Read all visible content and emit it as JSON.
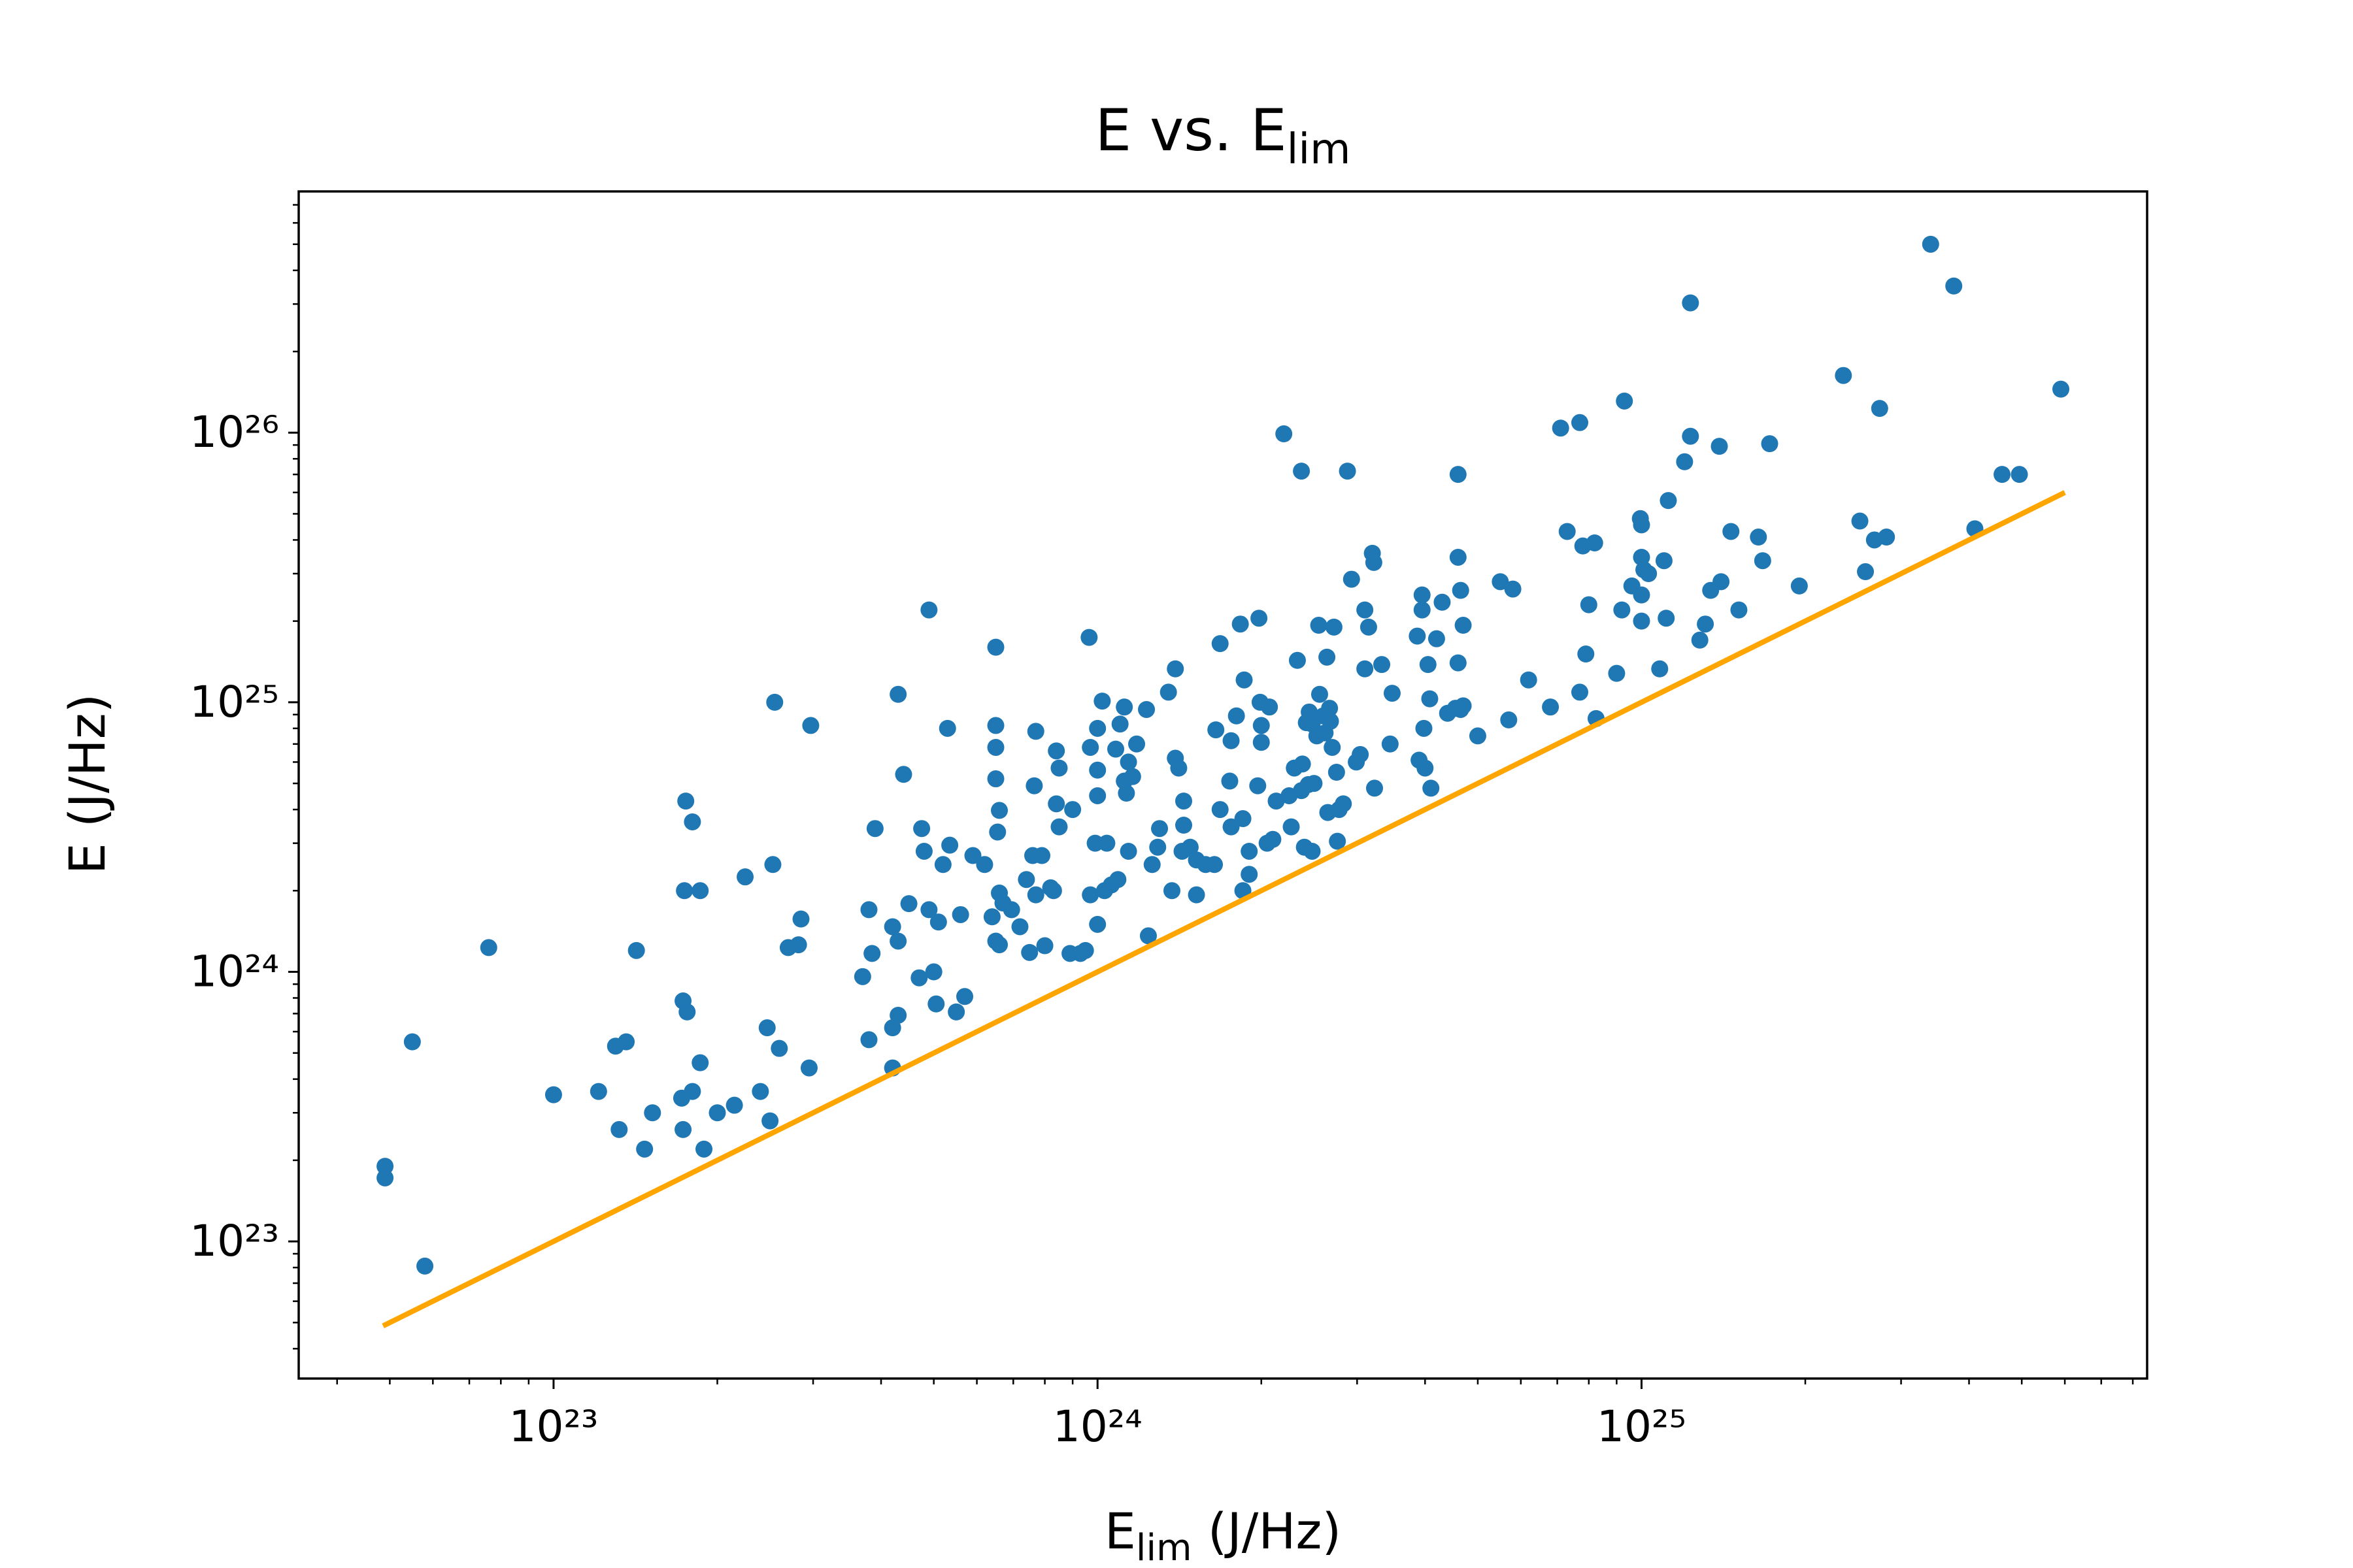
{
  "chart_data": {
    "type": "scatter",
    "title": {
      "text": "E vs. E",
      "subscript": "lim"
    },
    "x_label": {
      "text": "E",
      "subscript": "lim",
      "rest": " (J/Hz)"
    },
    "y_label": "E (J/Hz)",
    "xscale": "log",
    "yscale": "log",
    "xlim": [
      3.4e+22,
      8.5e+25
    ],
    "ylim": [
      3.1e+22,
      7.85e+26
    ],
    "xticks": [
      {
        "value": 1e+23,
        "label": "10²³"
      },
      {
        "value": 1e+24,
        "label": "10²⁴"
      },
      {
        "value": 1e+25,
        "label": "10²⁵"
      }
    ],
    "yticks": [
      {
        "value": 1e+23,
        "label": "10²³"
      },
      {
        "value": 1e+24,
        "label": "10²⁴"
      },
      {
        "value": 1e+25,
        "label": "10²⁵"
      },
      {
        "value": 1e+26,
        "label": "10²⁶"
      }
    ],
    "xminorticks": [
      4e+22,
      5e+22,
      6e+22,
      7e+22,
      8e+22,
      9e+22,
      2e+23,
      3e+23,
      4e+23,
      5e+23,
      6e+23,
      7e+23,
      8e+23,
      9e+23,
      2e+24,
      3e+24,
      4e+24,
      5e+24,
      6e+24,
      7e+24,
      8e+24,
      9e+24,
      2e+25,
      3e+25,
      4e+25,
      5e+25,
      6e+25,
      7e+25,
      8e+25
    ],
    "yminorticks": [
      4e+22,
      5e+22,
      6e+22,
      7e+22,
      8e+22,
      9e+22,
      2e+23,
      3e+23,
      4e+23,
      5e+23,
      6e+23,
      7e+23,
      8e+23,
      9e+23,
      2e+24,
      3e+24,
      4e+24,
      5e+24,
      6e+24,
      7e+24,
      8e+24,
      9e+24,
      2e+25,
      3e+25,
      4e+25,
      5e+25,
      6e+25,
      7e+25,
      8e+25,
      9e+25,
      2e+26,
      3e+26,
      4e+26,
      5e+26,
      6e+26,
      7e+26
    ],
    "series": [
      {
        "type": "scatter",
        "color": "#1f77b4",
        "x": [
          4.9e+22,
          4.9e+22,
          5.8e+22,
          5.5e+22,
          7.6e+22,
          1e+23,
          1.21e+23,
          1.3e+23,
          1.36e+23,
          1.42e+23,
          1.32e+23,
          1.47e+23,
          1.52e+23,
          1.72e+23,
          1.73e+23,
          1.76e+23,
          1.75e+23,
          1.8e+23,
          1.74e+23,
          1.86e+23,
          1.86e+23,
          1.8e+23,
          1.73e+23,
          1.89e+23,
          2e+23,
          2.15e+23,
          2.25e+23,
          2.4e+23,
          2.47e+23,
          2.5e+23,
          2.6e+23,
          2.53e+23,
          2.55e+23,
          2.7e+23,
          2.85e+23,
          2.82e+23,
          2.95e+23,
          2.97e+23,
          3.7e+23,
          3.8e+23,
          3.8e+23,
          3.9e+23,
          3.85e+23,
          4.2e+23,
          4.2e+23,
          4.2e+23,
          4.3e+23,
          4.3e+23,
          4.3e+23,
          4.4e+23,
          4.5e+23,
          4.7e+23,
          4.75e+23,
          4.8e+23,
          4.9e+23,
          4.9e+23,
          5e+23,
          5.05e+23,
          5.1e+23,
          5.2e+23,
          5.3e+23,
          5.35e+23,
          5.5e+23,
          5.6e+23,
          5.7e+23,
          5.9e+23,
          6.2e+23,
          6.4e+23,
          6.5e+23,
          6.5e+23,
          6.5e+23,
          6.5e+23,
          6.5e+23,
          6.55e+23,
          6.6e+23,
          6.6e+23,
          6.6e+23,
          6.7e+23,
          6.95e+23,
          7.2e+23,
          7.4e+23,
          7.5e+23,
          7.6e+23,
          7.65e+23,
          7.7e+23,
          7.7e+23,
          7.9e+23,
          8e+23,
          8.2e+23,
          8.3e+23,
          8.4e+23,
          8.4e+23,
          8.5e+23,
          8.5e+23,
          8.9e+23,
          9e+23,
          9.3e+23,
          9.5e+23,
          9.65e+23,
          9.7e+23,
          9.7e+23,
          9.9e+23,
          1e+24,
          1e+24,
          1e+24,
          1e+24,
          1.02e+24,
          1.03e+24,
          1.04e+24,
          1.06e+24,
          1.08e+24,
          1.09e+24,
          1.1e+24,
          1.12e+24,
          1.12e+24,
          1.13e+24,
          1.14e+24,
          1.14e+24,
          1.16e+24,
          1.18e+24,
          1.23e+24,
          1.24e+24,
          1.26e+24,
          1.29e+24,
          1.3e+24,
          1.35e+24,
          1.37e+24,
          1.39e+24,
          1.39e+24,
          1.41e+24,
          1.43e+24,
          1.44e+24,
          1.44e+24,
          1.48e+24,
          1.52e+24,
          1.52e+24,
          1.58e+24,
          1.64e+24,
          1.65e+24,
          1.68e+24,
          1.68e+24,
          1.75e+24,
          1.76e+24,
          1.76e+24,
          1.8e+24,
          1.83e+24,
          1.85e+24,
          1.85e+24,
          1.86e+24,
          1.9e+24,
          1.9e+24,
          1.97e+24,
          1.98e+24,
          1.99e+24,
          2e+24,
          2e+24,
          2.05e+24,
          2.07e+24,
          2.1e+24,
          2.13e+24,
          2.2e+24,
          2.25e+24,
          2.27e+24,
          2.3e+24,
          2.33e+24,
          2.37e+24,
          2.37e+24,
          2.38e+24,
          2.4e+24,
          2.42e+24,
          2.44e+24,
          2.45e+24,
          2.48e+24,
          2.48e+24,
          2.5e+24,
          2.53e+24,
          2.55e+24,
          2.56e+24,
          2.6e+24,
          2.62e+24,
          2.64e+24,
          2.65e+24,
          2.67e+24,
          2.68e+24,
          2.7e+24,
          2.72e+24,
          2.75e+24,
          2.76e+24,
          2.78e+24,
          2.83e+24,
          2.88e+24,
          2.93e+24,
          2.99e+24,
          3.04e+24,
          3.1e+24,
          3.1e+24,
          3.15e+24,
          3.2e+24,
          3.22e+24,
          3.23e+24,
          3.33e+24,
          3.45e+24,
          3.48e+24,
          3.9e+24,
          3.95e+24,
          3.95e+24,
          3.87e+24,
          3.98e+24,
          4e+24,
          4.05e+24,
          4.08e+24,
          4.1e+24,
          4.2e+24,
          4.3e+24,
          4.4e+24,
          4.55e+24,
          4.6e+24,
          4.6e+24,
          4.6e+24,
          4.65e+24,
          4.65e+24,
          4.7e+24,
          4.7e+24,
          5e+24,
          5.5e+24,
          5.7e+24,
          5.8e+24,
          6.2e+24,
          6.8e+24,
          7.1e+24,
          7.3e+24,
          7.7e+24,
          7.7e+24,
          7.8e+24,
          7.9e+24,
          8e+24,
          8.2e+24,
          8.25e+24,
          9e+24,
          9.2e+24,
          9.3e+24,
          9.6e+24,
          9.95e+24,
          1e+25,
          1e+25,
          1e+25,
          1e+25,
          1.01e+25,
          1.03e+25,
          1.08e+25,
          1.1e+25,
          1.11e+25,
          1.12e+25,
          1.2e+25,
          1.23e+25,
          1.23e+25,
          1.28e+25,
          1.31e+25,
          1.34e+25,
          1.39e+25,
          1.4e+25,
          1.46e+25,
          1.51e+25,
          1.64e+25,
          1.67e+25,
          1.72e+25,
          1.95e+25,
          2.35e+25,
          2.52e+25,
          2.58e+25,
          2.68e+25,
          2.74e+25,
          2.82e+25,
          3.4e+25,
          3.75e+25,
          4.1e+25,
          4.6e+25,
          4.95e+25,
          5.9e+25
        ],
        "values": [
          1.9e+23,
          1.72e+23,
          8.1e+22,
          5.5e+23,
          1.23e+24,
          3.5e+23,
          3.6e+23,
          5.3e+23,
          5.5e+23,
          1.2e+24,
          2.6e+23,
          2.2e+23,
          3e+23,
          3.4e+23,
          7.8e+23,
          7.1e+23,
          4.3e+24,
          3.6e+24,
          2e+24,
          2e+24,
          4.6e+23,
          3.6e+23,
          2.6e+23,
          2.2e+23,
          3e+23,
          3.2e+23,
          2.25e+24,
          3.6e+23,
          6.2e+23,
          2.8e+23,
          5.2e+23,
          2.5e+24,
          1e+25,
          1.23e+24,
          1.57e+24,
          1.26e+24,
          4.4e+23,
          8.2e+24,
          9.6e+23,
          5.6e+23,
          1.7e+24,
          3.4e+24,
          1.17e+24,
          4.4e+23,
          1.47e+24,
          6.2e+23,
          1.07e+25,
          6.9e+23,
          1.3e+24,
          5.4e+24,
          1.79e+24,
          9.5e+23,
          3.4e+24,
          2.8e+24,
          2.2e+25,
          1.7e+24,
          1e+24,
          7.6e+23,
          1.53e+24,
          2.5e+24,
          8e+24,
          2.95e+24,
          7.1e+23,
          1.63e+24,
          8.1e+23,
          2.7e+24,
          2.5e+24,
          1.6e+24,
          1.3e+24,
          1.6e+25,
          8.2e+24,
          6.8e+24,
          5.2e+24,
          3.3e+24,
          3.97e+24,
          1.96e+24,
          1.26e+24,
          1.8e+24,
          1.7e+24,
          1.47e+24,
          2.2e+24,
          1.18e+24,
          2.7e+24,
          4.9e+24,
          7.8e+24,
          1.93e+24,
          2.7e+24,
          1.25e+24,
          2.05e+24,
          2e+24,
          6.6e+24,
          4.2e+24,
          3.45e+24,
          5.7e+24,
          1.17e+24,
          4e+24,
          1.17e+24,
          1.2e+24,
          1.74e+25,
          6.8e+24,
          1.93e+24,
          3e+24,
          5.6e+24,
          8e+24,
          1.5e+24,
          4.5e+24,
          1.01e+25,
          2e+24,
          3e+24,
          2.1e+24,
          6.7e+24,
          2.2e+24,
          8.3e+24,
          9.6e+24,
          5.1e+24,
          4.6e+24,
          6e+24,
          2.8e+24,
          5.3e+24,
          7e+24,
          9.4e+24,
          1.36e+24,
          2.5e+24,
          2.9e+24,
          3.4e+24,
          1.09e+25,
          2e+24,
          1.33e+25,
          6.2e+24,
          5.7e+24,
          2.8e+24,
          3.5e+24,
          4.3e+24,
          2.9e+24,
          1.93e+24,
          2.6e+24,
          2.5e+24,
          2.5e+24,
          7.9e+24,
          1.65e+25,
          4e+24,
          5.1e+24,
          3.45e+24,
          7.2e+24,
          8.9e+24,
          1.95e+25,
          3.7e+24,
          2e+24,
          1.21e+25,
          2.8e+24,
          2.3e+24,
          4.9e+24,
          2.05e+25,
          1e+25,
          7.1e+24,
          8.2e+24,
          3e+24,
          9.6e+24,
          3.1e+24,
          4.3e+24,
          9.9e+25,
          4.5e+24,
          3.45e+24,
          5.7e+24,
          1.43e+25,
          4.7e+24,
          7.2e+25,
          5.9e+24,
          2.9e+24,
          8.4e+24,
          4.95e+24,
          9.2e+24,
          8.3e+24,
          2.8e+24,
          5e+24,
          7.5e+24,
          1.93e+25,
          1.07e+25,
          8.9e+24,
          7.7e+24,
          1.47e+25,
          3.9e+24,
          9.5e+24,
          8.5e+24,
          6.8e+24,
          1.9e+25,
          5.5e+24,
          3.05e+24,
          4e+24,
          4.2e+24,
          7.2e+25,
          2.86e+25,
          6e+24,
          6.4e+24,
          1.33e+25,
          2.2e+25,
          1.9e+25,
          3.57e+25,
          3.3e+25,
          4.8e+24,
          1.38e+25,
          7e+24,
          1.08e+25,
          6.1e+24,
          2.5e+25,
          2.2e+25,
          1.76e+25,
          8e+24,
          5.7e+24,
          1.38e+25,
          1.03e+25,
          4.8e+24,
          1.72e+25,
          2.35e+25,
          9.1e+24,
          9.5e+24,
          7e+25,
          3.45e+25,
          1.4e+25,
          2.6e+25,
          9.4e+24,
          1.93e+25,
          9.7e+24,
          7.5e+24,
          2.8e+25,
          8.6e+24,
          2.63e+25,
          1.21e+25,
          9.6e+24,
          1.04e+26,
          4.3e+25,
          1.09e+26,
          1.09e+25,
          3.8e+25,
          1.51e+25,
          2.3e+25,
          3.9e+25,
          8.7e+24,
          1.28e+25,
          2.2e+25,
          1.31e+26,
          2.7e+25,
          4.8e+25,
          2.5e+25,
          3.45e+25,
          4.55e+25,
          2e+25,
          3.1e+25,
          3e+25,
          1.33e+25,
          3.35e+25,
          2.05e+25,
          5.6e+25,
          7.8e+25,
          9.7e+25,
          3.03e+26,
          1.7e+25,
          1.95e+25,
          2.6e+25,
          8.9e+25,
          2.8e+25,
          4.3e+25,
          2.2e+25,
          4.1e+25,
          3.35e+25,
          9.1e+25,
          2.7e+25,
          1.63e+26,
          4.7e+25,
          3.05e+25,
          4e+25,
          1.23e+26,
          4.1e+25,
          5e+26,
          3.5e+26,
          4.4e+25,
          7e+25,
          7e+25,
          1.45e+26
        ]
      },
      {
        "type": "line",
        "color": "#ffa500",
        "x": [
          4.86e+22,
          6e+25
        ],
        "values": [
          4.86e+22,
          6e+25
        ]
      }
    ]
  }
}
